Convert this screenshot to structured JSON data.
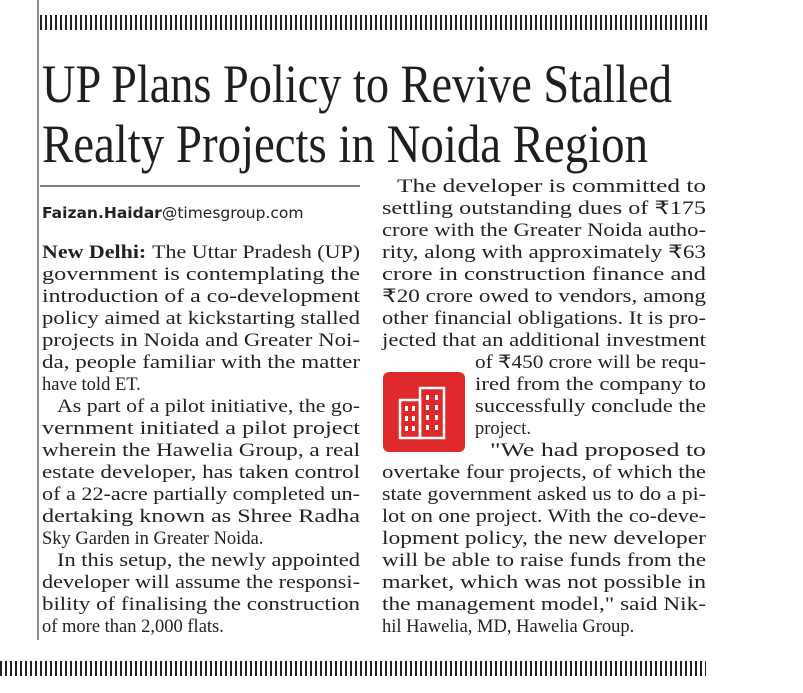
{
  "headline": [
    "UP Plans Policy to Revive Stalled",
    "Realty Projects in Noida Region"
  ],
  "byline": {
    "name": "Faizan.Haidar",
    "email": "@timesgroup.com"
  },
  "columns": [
    {
      "paragraphs": [
        {
          "dateline": "New Delhi:",
          "lines": [
            "The Uttar Pradesh (UP)",
            "government is contemplating the",
            "introduction of a co-development",
            "policy aimed at kickstarting stalled",
            "projects in Noida and Greater Noi-",
            "da, people familiar with the matter",
            "have told ET."
          ]
        },
        {
          "lines": [
            "As part of a pilot initiative, the go-",
            "vernment initiated a pilot project",
            "wherein the Hawelia Group, a real",
            "estate developer, has taken control",
            "of a 22-acre partially completed un-",
            "dertaking known as Shree Radha",
            "Sky Garden in Greater Noida."
          ]
        },
        {
          "lines": [
            "In this setup, the newly appointed",
            "developer will assume the responsi-",
            "bility of finalising the construction",
            "of more than 2,000 flats."
          ]
        }
      ]
    },
    {
      "paragraphs": [
        {
          "lines": [
            "The developer is committed to",
            "settling outstanding dues of ₹175",
            "crore with the Greater Noida autho-",
            "rity, along with approximately ₹63",
            "crore in construction finance and",
            "₹20 crore owed to vendors, among",
            "other financial obligations. It is pro-",
            "jected that an additional investment",
            "of ₹450 crore will be requ-",
            "ired from the company to",
            "successfully conclude the",
            "project."
          ]
        },
        {
          "lines": [
            "\"We had proposed to",
            "overtake four projects, of which the",
            "state government asked us to do a pi-",
            "lot on one project. With the co-deve-",
            "lopment policy, the new developer",
            "will be able to raise funds from the",
            "market, which was not possible in",
            "the management model,\" said Nik-",
            "hil Hawelia, MD, Hawelia Group."
          ]
        }
      ]
    }
  ]
}
